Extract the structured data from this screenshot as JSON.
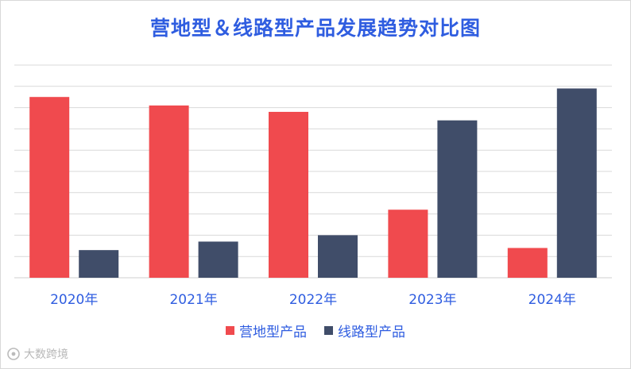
{
  "chart_data": {
    "type": "bar",
    "title": "营地型＆线路型产品发展趋势对比图",
    "categories": [
      "2020年",
      "2021年",
      "2022年",
      "2023年",
      "2024年"
    ],
    "series": [
      {
        "name": "营地型产品",
        "color": "#f04a4e",
        "values": [
          85,
          81,
          78,
          32,
          14
        ]
      },
      {
        "name": "线路型产品",
        "color": "#404d69",
        "values": [
          13,
          17,
          20,
          74,
          89
        ]
      }
    ],
    "ylim": [
      0,
      100
    ],
    "grid": true,
    "legend_position": "bottom"
  },
  "watermark": {
    "text": "大数跨境",
    "icon": "brand-logo-icon"
  }
}
